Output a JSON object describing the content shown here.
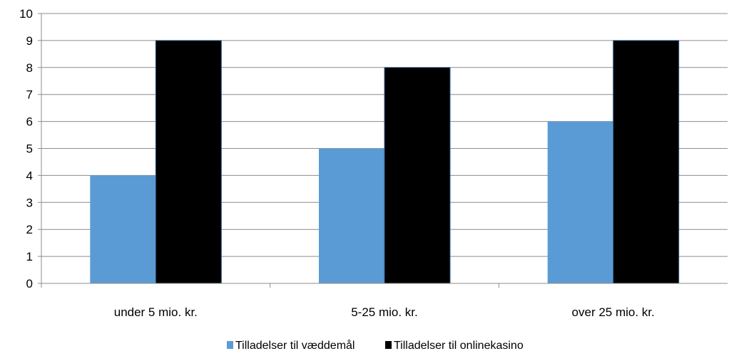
{
  "chart_data": {
    "type": "bar",
    "categories": [
      "under 5 mio. kr.",
      "5-25 mio. kr.",
      "over 25 mio. kr."
    ],
    "series": [
      {
        "name": "Tilladelser til væddemål",
        "values": [
          4,
          5,
          6
        ],
        "color": "#5b9bd5"
      },
      {
        "name": "Tilladelser til onlinekasino",
        "values": [
          9,
          8,
          9
        ],
        "color": "#000000"
      }
    ],
    "ylim": [
      0,
      10
    ],
    "yticks": [
      0,
      1,
      2,
      3,
      4,
      5,
      6,
      7,
      8,
      9,
      10
    ],
    "grid": true,
    "legend_position": "bottom"
  }
}
